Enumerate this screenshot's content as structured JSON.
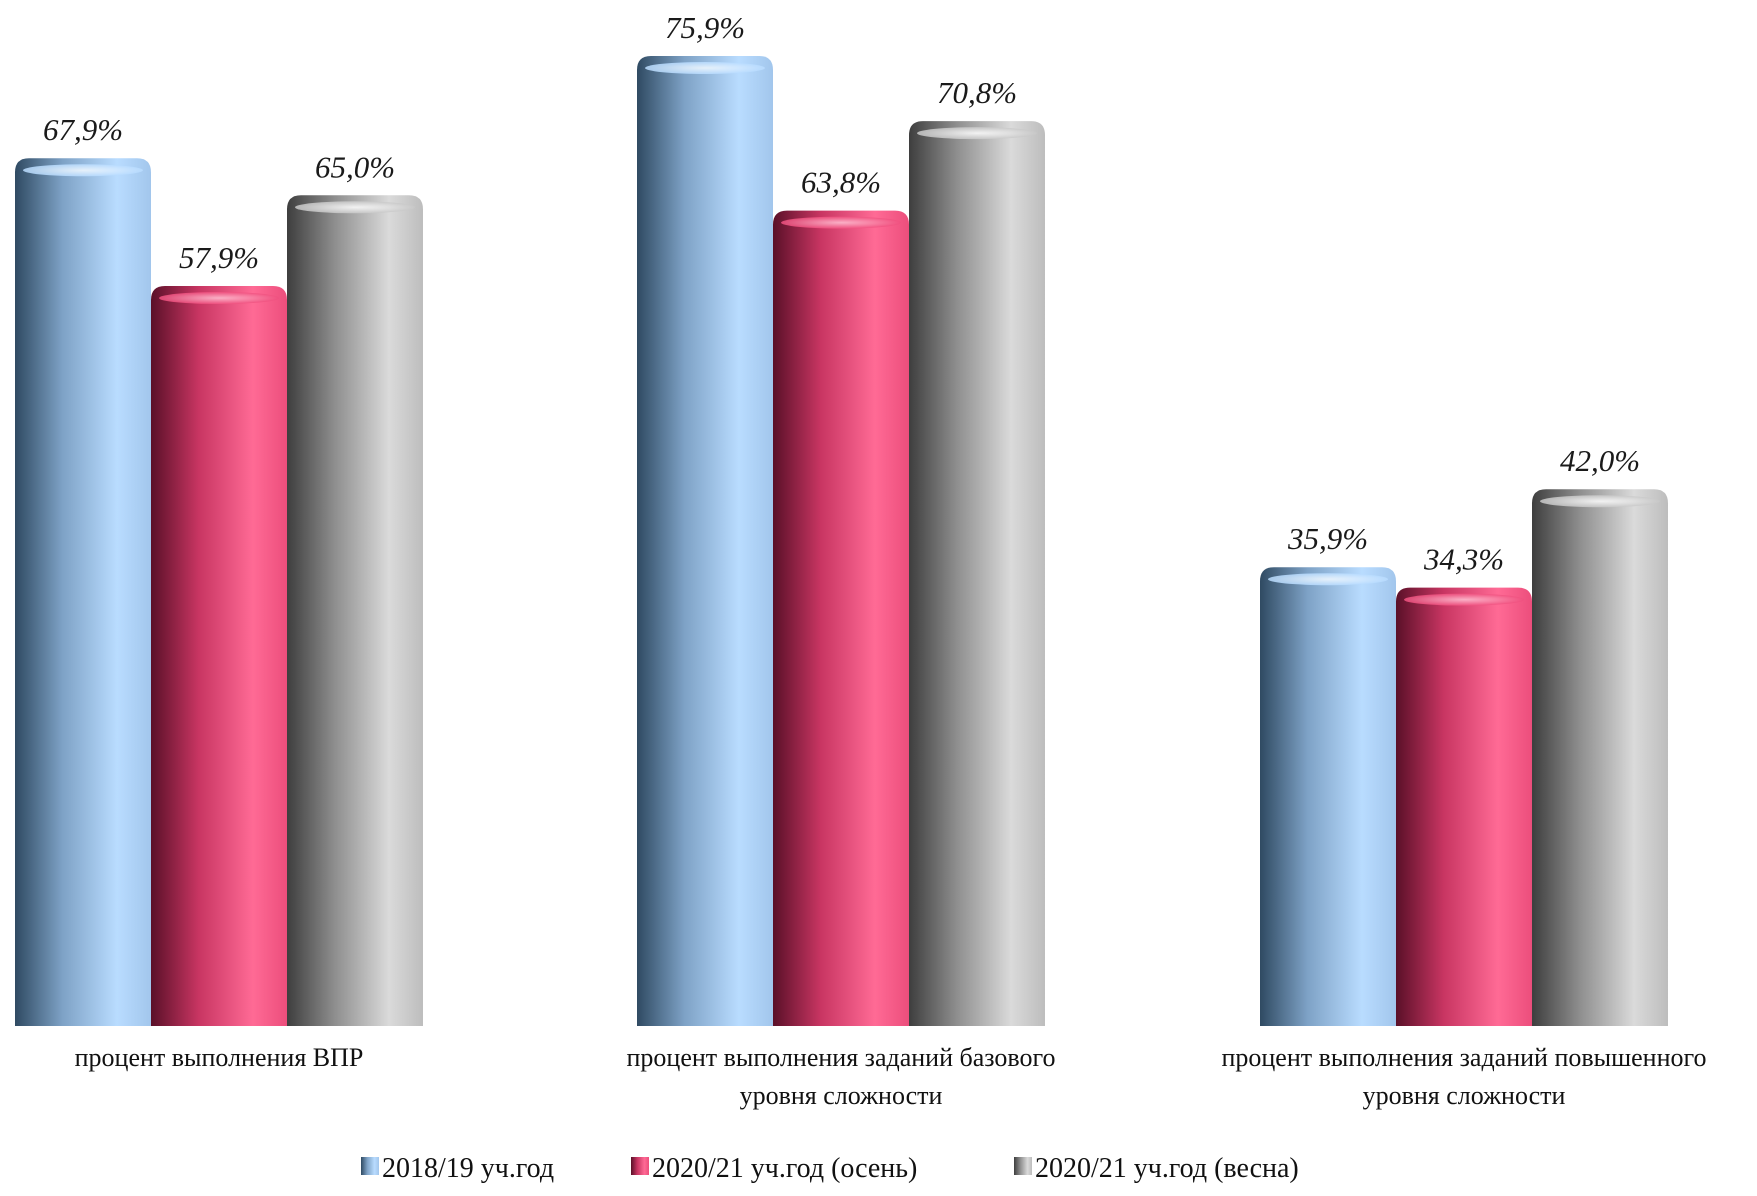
{
  "chart_data": {
    "type": "bar",
    "categories": [
      [
        "процент выполнения ВПР"
      ],
      [
        "процент выполнения заданий базового",
        "уровня сложности"
      ],
      [
        "процент выполнения заданий повышенного",
        "уровня сложности"
      ]
    ],
    "series": [
      {
        "name": "2018/19 уч.год",
        "values": [
          67.9,
          75.9,
          35.9
        ],
        "labels": [
          "67,9%",
          "75,9%",
          "35,9%"
        ],
        "color": "#a9cdf2"
      },
      {
        "name": "2020/21 уч.год (осень)",
        "values": [
          57.9,
          63.8,
          34.3
        ],
        "labels": [
          "57,9%",
          "63,8%",
          "34,3%"
        ],
        "color": "#f0507f"
      },
      {
        "name": "2020/21 уч.год (весна)",
        "values": [
          65.0,
          70.8,
          42.0
        ],
        "labels": [
          "65,0%",
          "70,8%",
          "42,0%"
        ],
        "color": "#c4c4c4"
      }
    ],
    "ylim": [
      0,
      100
    ],
    "grid": false,
    "legend_position": "bottom"
  }
}
